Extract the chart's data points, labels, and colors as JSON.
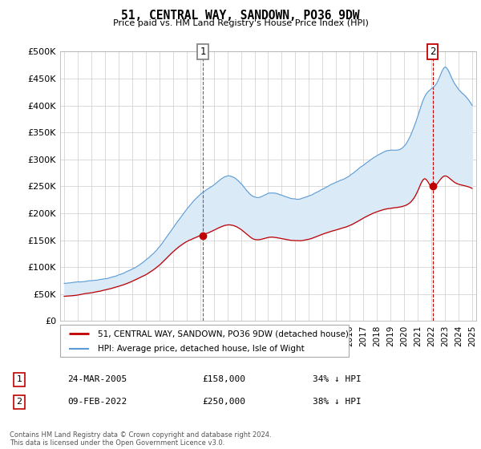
{
  "title": "51, CENTRAL WAY, SANDOWN, PO36 9DW",
  "subtitle": "Price paid vs. HM Land Registry's House Price Index (HPI)",
  "footnote": "Contains HM Land Registry data © Crown copyright and database right 2024.\nThis data is licensed under the Open Government Licence v3.0.",
  "legend_line1": "51, CENTRAL WAY, SANDOWN, PO36 9DW (detached house)",
  "legend_line2": "HPI: Average price, detached house, Isle of Wight",
  "sale1_date": "24-MAR-2005",
  "sale1_price": "£158,000",
  "sale1_hpi": "34% ↓ HPI",
  "sale2_date": "09-FEB-2022",
  "sale2_price": "£250,000",
  "sale2_hpi": "38% ↓ HPI",
  "hpi_color": "#5b9bd5",
  "hpi_fill_color": "#dbeaf7",
  "sale_color": "#c00000",
  "ylim": [
    0,
    500000
  ],
  "yticks": [
    0,
    50000,
    100000,
    150000,
    200000,
    250000,
    300000,
    350000,
    400000,
    450000,
    500000
  ],
  "background_color": "#ffffff",
  "grid_color": "#cccccc",
  "sale1_year": 2005.2,
  "sale1_value": 158000,
  "sale2_year": 2022.1,
  "sale2_value": 250000,
  "xlim_left": 1994.7,
  "xlim_right": 2025.3
}
